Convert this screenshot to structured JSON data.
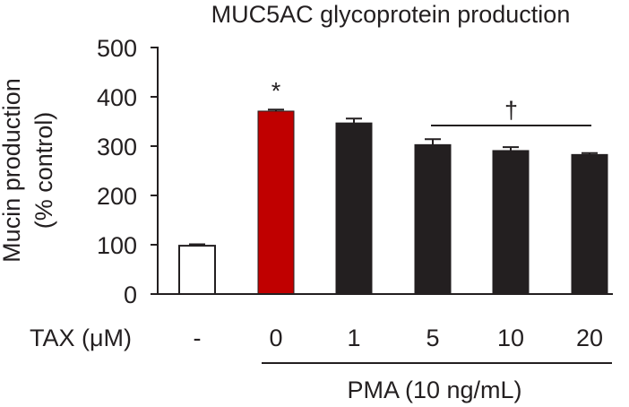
{
  "chart_data": {
    "type": "bar",
    "title": "MUC5AC glycoprotein production",
    "ylabel_line1": "Mucin production",
    "ylabel_line2": "(% control)",
    "xlabel_prefix": "TAX (μM)",
    "group_label": "PMA (10 ng/mL)",
    "categories": [
      "-",
      "0",
      "1",
      "5",
      "10",
      "20"
    ],
    "values": [
      98,
      371,
      347,
      303,
      291,
      283
    ],
    "errors": [
      3,
      3,
      9,
      11,
      7,
      3
    ],
    "colors": [
      "#ffffff",
      "#c00000",
      "#231f20",
      "#231f20",
      "#231f20",
      "#231f20"
    ],
    "ylim": [
      0,
      500
    ],
    "yticks": [
      0,
      100,
      200,
      300,
      400,
      500
    ],
    "annotations": [
      {
        "text": "*",
        "category_index": 1
      },
      {
        "text": "†",
        "from_index": 3,
        "to_index": 5
      }
    ]
  }
}
